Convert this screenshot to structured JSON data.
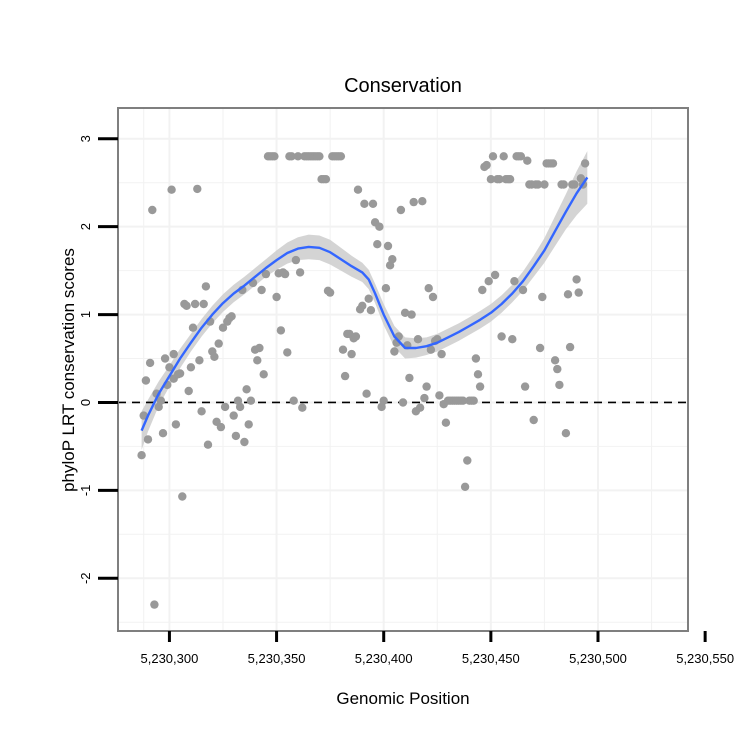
{
  "chart_data": {
    "type": "scatter",
    "title": "Conservation",
    "xlabel": "Genomic Position",
    "ylabel": "phyloP LRT conservation scores",
    "xlim": [
      5230276,
      5230542
    ],
    "ylim": [
      -2.6,
      3.35
    ],
    "x_ticks": [
      {
        "value": 5230300,
        "label": "5,230,300"
      },
      {
        "value": 5230350,
        "label": "5,230,350"
      },
      {
        "value": 5230400,
        "label": "5,230,400"
      },
      {
        "value": 5230450,
        "label": "5,230,450"
      },
      {
        "value": 5230500,
        "label": "5,230,500"
      },
      {
        "value": 5230550,
        "label": "5,230,550"
      }
    ],
    "y_ticks": [
      {
        "value": -2,
        "label": "-2"
      },
      {
        "value": -1,
        "label": "-1"
      },
      {
        "value": 0,
        "label": "0"
      },
      {
        "value": 1,
        "label": "1"
      },
      {
        "value": 2,
        "label": "2"
      },
      {
        "value": 3,
        "label": "3"
      }
    ],
    "reference_line": {
      "y": 0,
      "style": "dashed",
      "color": "#000000"
    },
    "grid": true,
    "colors": {
      "points": "#999999",
      "smooth_line": "#3366ff",
      "ribbon": "#cccccc",
      "panel_border": "#7f7f7f",
      "grid": "#f2f2f2"
    },
    "points": [
      [
        5230287,
        -0.6
      ],
      [
        5230288,
        -0.15
      ],
      [
        5230289,
        0.25
      ],
      [
        5230290,
        -0.42
      ],
      [
        5230291,
        0.45
      ],
      [
        5230292,
        2.19
      ],
      [
        5230293,
        -2.3
      ],
      [
        5230294,
        0.1
      ],
      [
        5230295,
        -0.05
      ],
      [
        5230296,
        0.02
      ],
      [
        5230297,
        -0.35
      ],
      [
        5230298,
        0.5
      ],
      [
        5230299,
        0.2
      ],
      [
        5230300,
        0.4
      ],
      [
        5230301,
        2.42
      ],
      [
        5230302,
        0.55
      ],
      [
        5230302,
        0.27
      ],
      [
        5230303,
        -0.25
      ],
      [
        5230304,
        0.32
      ],
      [
        5230305,
        0.33
      ],
      [
        5230306,
        -1.07
      ],
      [
        5230307,
        1.12
      ],
      [
        5230308,
        1.1
      ],
      [
        5230309,
        0.13
      ],
      [
        5230310,
        0.4
      ],
      [
        5230311,
        0.85
      ],
      [
        5230312,
        1.12
      ],
      [
        5230313,
        2.43
      ],
      [
        5230314,
        0.48
      ],
      [
        5230315,
        -0.1
      ],
      [
        5230316,
        1.12
      ],
      [
        5230317,
        1.32
      ],
      [
        5230318,
        -0.48
      ],
      [
        5230319,
        0.92
      ],
      [
        5230320,
        0.58
      ],
      [
        5230321,
        0.52
      ],
      [
        5230322,
        -0.22
      ],
      [
        5230323,
        0.67
      ],
      [
        5230324,
        -0.28
      ],
      [
        5230325,
        0.85
      ],
      [
        5230326,
        -0.05
      ],
      [
        5230327,
        0.92
      ],
      [
        5230328,
        0.96
      ],
      [
        5230329,
        0.98
      ],
      [
        5230330,
        -0.15
      ],
      [
        5230331,
        -0.38
      ],
      [
        5230332,
        0.02
      ],
      [
        5230333,
        -0.05
      ],
      [
        5230334,
        1.28
      ],
      [
        5230335,
        -0.45
      ],
      [
        5230336,
        0.15
      ],
      [
        5230337,
        -0.25
      ],
      [
        5230338,
        0.02
      ],
      [
        5230339,
        1.36
      ],
      [
        5230340,
        0.6
      ],
      [
        5230341,
        0.48
      ],
      [
        5230342,
        0.62
      ],
      [
        5230343,
        1.28
      ],
      [
        5230344,
        0.32
      ],
      [
        5230345,
        1.46
      ],
      [
        5230346,
        2.8
      ],
      [
        5230347,
        2.8
      ],
      [
        5230348,
        2.8
      ],
      [
        5230349,
        2.8
      ],
      [
        5230350,
        1.2
      ],
      [
        5230351,
        1.47
      ],
      [
        5230352,
        0.82
      ],
      [
        5230353,
        1.48
      ],
      [
        5230354,
        1.46
      ],
      [
        5230355,
        0.57
      ],
      [
        5230356,
        2.8
      ],
      [
        5230357,
        2.8
      ],
      [
        5230358,
        0.02
      ],
      [
        5230359,
        1.62
      ],
      [
        5230360,
        2.8
      ],
      [
        5230361,
        1.48
      ],
      [
        5230362,
        -0.06
      ],
      [
        5230363,
        2.8
      ],
      [
        5230364,
        2.8
      ],
      [
        5230365,
        2.8
      ],
      [
        5230366,
        2.8
      ],
      [
        5230367,
        2.8
      ],
      [
        5230368,
        2.8
      ],
      [
        5230369,
        2.8
      ],
      [
        5230370,
        2.8
      ],
      [
        5230371,
        2.54
      ],
      [
        5230372,
        2.54
      ],
      [
        5230373,
        2.54
      ],
      [
        5230374,
        1.27
      ],
      [
        5230375,
        1.25
      ],
      [
        5230376,
        2.8
      ],
      [
        5230377,
        2.8
      ],
      [
        5230378,
        2.8
      ],
      [
        5230379,
        2.8
      ],
      [
        5230380,
        2.8
      ],
      [
        5230381,
        0.6
      ],
      [
        5230382,
        0.3
      ],
      [
        5230383,
        0.78
      ],
      [
        5230384,
        0.78
      ],
      [
        5230385,
        0.55
      ],
      [
        5230386,
        0.73
      ],
      [
        5230387,
        0.75
      ],
      [
        5230388,
        2.42
      ],
      [
        5230389,
        1.06
      ],
      [
        5230390,
        1.1
      ],
      [
        5230391,
        2.26
      ],
      [
        5230392,
        0.1
      ],
      [
        5230393,
        1.18
      ],
      [
        5230394,
        1.05
      ],
      [
        5230395,
        2.26
      ],
      [
        5230396,
        2.05
      ],
      [
        5230397,
        1.8
      ],
      [
        5230398,
        2.0
      ],
      [
        5230399,
        -0.05
      ],
      [
        5230400,
        0.02
      ],
      [
        5230401,
        1.3
      ],
      [
        5230402,
        1.78
      ],
      [
        5230403,
        1.56
      ],
      [
        5230404,
        1.63
      ],
      [
        5230405,
        0.58
      ],
      [
        5230406,
        0.68
      ],
      [
        5230407,
        0.75
      ],
      [
        5230408,
        2.19
      ],
      [
        5230409,
        0.0
      ],
      [
        5230410,
        1.02
      ],
      [
        5230411,
        0.65
      ],
      [
        5230412,
        0.28
      ],
      [
        5230413,
        1.0
      ],
      [
        5230414,
        2.28
      ],
      [
        5230415,
        -0.1
      ],
      [
        5230416,
        0.72
      ],
      [
        5230417,
        -0.06
      ],
      [
        5230418,
        2.29
      ],
      [
        5230419,
        0.05
      ],
      [
        5230420,
        0.18
      ],
      [
        5230421,
        1.3
      ],
      [
        5230422,
        0.6
      ],
      [
        5230423,
        1.2
      ],
      [
        5230424,
        0.7
      ],
      [
        5230425,
        0.72
      ],
      [
        5230426,
        0.08
      ],
      [
        5230427,
        0.55
      ],
      [
        5230428,
        -0.02
      ],
      [
        5230429,
        -0.23
      ],
      [
        5230430,
        0.02
      ],
      [
        5230431,
        0.02
      ],
      [
        5230432,
        0.02
      ],
      [
        5230433,
        0.02
      ],
      [
        5230434,
        0.02
      ],
      [
        5230435,
        0.02
      ],
      [
        5230436,
        0.02
      ],
      [
        5230437,
        0.02
      ],
      [
        5230438,
        -0.96
      ],
      [
        5230439,
        -0.66
      ],
      [
        5230440,
        0.02
      ],
      [
        5230441,
        0.02
      ],
      [
        5230442,
        0.02
      ],
      [
        5230443,
        0.5
      ],
      [
        5230444,
        0.32
      ],
      [
        5230445,
        0.18
      ],
      [
        5230446,
        1.28
      ],
      [
        5230447,
        2.68
      ],
      [
        5230448,
        2.7
      ],
      [
        5230449,
        1.38
      ],
      [
        5230450,
        2.54
      ],
      [
        5230451,
        2.8
      ],
      [
        5230452,
        1.45
      ],
      [
        5230453,
        2.54
      ],
      [
        5230454,
        2.54
      ],
      [
        5230455,
        0.75
      ],
      [
        5230456,
        2.8
      ],
      [
        5230457,
        2.54
      ],
      [
        5230458,
        2.54
      ],
      [
        5230459,
        2.54
      ],
      [
        5230460,
        0.72
      ],
      [
        5230461,
        1.38
      ],
      [
        5230462,
        2.8
      ],
      [
        5230463,
        2.8
      ],
      [
        5230464,
        2.8
      ],
      [
        5230465,
        1.28
      ],
      [
        5230466,
        0.18
      ],
      [
        5230467,
        2.75
      ],
      [
        5230468,
        2.48
      ],
      [
        5230469,
        2.48
      ],
      [
        5230470,
        -0.2
      ],
      [
        5230471,
        2.48
      ],
      [
        5230472,
        2.48
      ],
      [
        5230473,
        0.62
      ],
      [
        5230474,
        1.2
      ],
      [
        5230475,
        2.48
      ],
      [
        5230476,
        2.72
      ],
      [
        5230477,
        2.72
      ],
      [
        5230478,
        2.72
      ],
      [
        5230479,
        2.72
      ],
      [
        5230480,
        0.48
      ],
      [
        5230481,
        0.38
      ],
      [
        5230482,
        0.2
      ],
      [
        5230483,
        2.48
      ],
      [
        5230484,
        2.48
      ],
      [
        5230485,
        -0.35
      ],
      [
        5230486,
        1.23
      ],
      [
        5230487,
        0.63
      ],
      [
        5230488,
        2.48
      ],
      [
        5230489,
        2.48
      ],
      [
        5230490,
        1.4
      ],
      [
        5230491,
        1.25
      ],
      [
        5230492,
        2.55
      ],
      [
        5230493,
        2.48
      ],
      [
        5230494,
        2.72
      ]
    ],
    "smooth_line": [
      [
        5230287,
        -0.32
      ],
      [
        5230290,
        -0.15
      ],
      [
        5230295,
        0.1
      ],
      [
        5230300,
        0.3
      ],
      [
        5230305,
        0.5
      ],
      [
        5230310,
        0.68
      ],
      [
        5230315,
        0.85
      ],
      [
        5230320,
        1.0
      ],
      [
        5230325,
        1.13
      ],
      [
        5230330,
        1.24
      ],
      [
        5230335,
        1.33
      ],
      [
        5230340,
        1.43
      ],
      [
        5230345,
        1.53
      ],
      [
        5230350,
        1.62
      ],
      [
        5230355,
        1.7
      ],
      [
        5230360,
        1.75
      ],
      [
        5230365,
        1.77
      ],
      [
        5230370,
        1.76
      ],
      [
        5230375,
        1.71
      ],
      [
        5230380,
        1.63
      ],
      [
        5230385,
        1.55
      ],
      [
        5230390,
        1.48
      ],
      [
        5230393,
        1.4
      ],
      [
        5230396,
        1.24
      ],
      [
        5230400,
        1.0
      ],
      [
        5230405,
        0.75
      ],
      [
        5230410,
        0.62
      ],
      [
        5230415,
        0.62
      ],
      [
        5230420,
        0.64
      ],
      [
        5230425,
        0.68
      ],
      [
        5230430,
        0.74
      ],
      [
        5230435,
        0.8
      ],
      [
        5230440,
        0.87
      ],
      [
        5230445,
        0.94
      ],
      [
        5230450,
        1.02
      ],
      [
        5230455,
        1.12
      ],
      [
        5230460,
        1.24
      ],
      [
        5230465,
        1.38
      ],
      [
        5230470,
        1.55
      ],
      [
        5230475,
        1.73
      ],
      [
        5230480,
        1.95
      ],
      [
        5230485,
        2.17
      ],
      [
        5230490,
        2.38
      ],
      [
        5230495,
        2.56
      ]
    ],
    "ribbon_halfwidth": [
      0.22,
      0.18,
      0.14,
      0.12,
      0.11,
      0.1,
      0.1,
      0.1,
      0.1,
      0.1,
      0.1,
      0.1,
      0.1,
      0.11,
      0.12,
      0.13,
      0.14,
      0.14,
      0.14,
      0.13,
      0.12,
      0.11,
      0.11,
      0.11,
      0.12,
      0.12,
      0.12,
      0.11,
      0.1,
      0.1,
      0.1,
      0.1,
      0.1,
      0.1,
      0.1,
      0.1,
      0.1,
      0.11,
      0.12,
      0.14,
      0.17,
      0.2,
      0.25,
      0.3
    ]
  }
}
